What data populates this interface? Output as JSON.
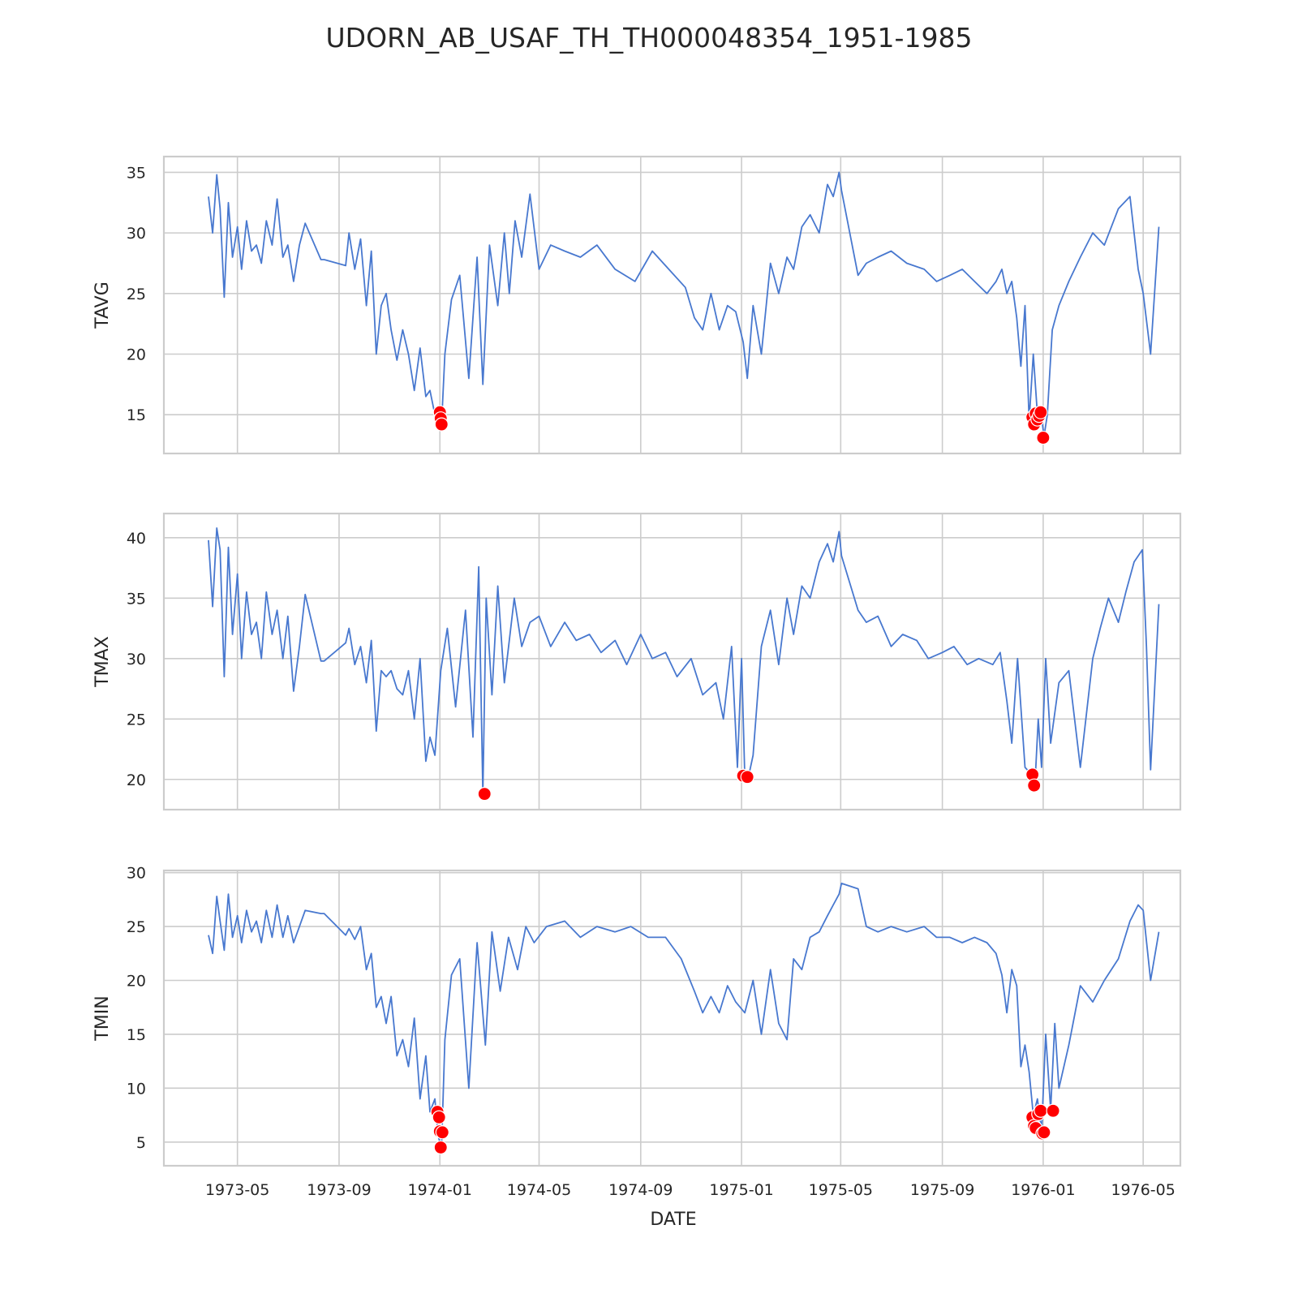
{
  "chart_data": {
    "type": "line",
    "title": "UDORN_AB_USAF_TH_TH000048354_1951-1985",
    "xlabel": "DATE",
    "x_tick_labels": [
      "1973-05",
      "1973-09",
      "1974-01",
      "1974-05",
      "1974-09",
      "1975-01",
      "1975-05",
      "1975-09",
      "1976-01",
      "1976-05"
    ],
    "xlim": [
      "1973-02-01",
      "1976-06-15"
    ],
    "grid": true,
    "panels": [
      {
        "ylabel": "TAVG",
        "ylim": [
          11.8,
          36.3
        ],
        "yticks": [
          15,
          20,
          25,
          30,
          35
        ],
        "series": {
          "x": [
            "1973-03-27",
            "1973-04-01",
            "1973-04-06",
            "1973-04-10",
            "1973-04-15",
            "1973-04-20",
            "1973-04-25",
            "1973-05-01",
            "1973-05-06",
            "1973-05-12",
            "1973-05-18",
            "1973-05-24",
            "1973-05-30",
            "1973-06-05",
            "1973-06-12",
            "1973-06-18",
            "1973-06-25",
            "1973-07-01",
            "1973-07-08",
            "1973-07-15",
            "1973-07-22",
            "1973-08-10",
            "1973-08-14",
            "1973-09-09",
            "1973-09-13",
            "1973-09-20",
            "1973-09-27",
            "1973-10-04",
            "1973-10-10",
            "1973-10-16",
            "1973-10-22",
            "1973-10-28",
            "1973-11-03",
            "1973-11-10",
            "1973-11-17",
            "1973-11-24",
            "1973-12-01",
            "1973-12-08",
            "1973-12-15",
            "1973-12-20",
            "1973-12-26",
            "1973-12-30",
            "1974-01-03",
            "1974-01-07",
            "1974-01-15",
            "1974-01-25",
            "1974-02-05",
            "1974-02-15",
            "1974-02-22",
            "1974-03-02",
            "1974-03-12",
            "1974-03-20",
            "1974-03-26",
            "1974-04-02",
            "1974-04-10",
            "1974-04-20",
            "1974-05-01",
            "1974-05-15",
            "1974-06-01",
            "1974-06-20",
            "1974-07-10",
            "1974-08-01",
            "1974-08-25",
            "1974-09-15",
            "1974-10-05",
            "1974-10-25",
            "1974-11-05",
            "1974-11-15",
            "1974-11-25",
            "1974-12-05",
            "1974-12-15",
            "1974-12-25",
            "1975-01-03",
            "1975-01-08",
            "1975-01-15",
            "1975-01-25",
            "1975-02-05",
            "1975-02-15",
            "1975-02-25",
            "1975-03-05",
            "1975-03-15",
            "1975-03-25",
            "1975-04-05",
            "1975-04-15",
            "1975-04-22",
            "1975-04-29",
            "1975-05-02",
            "1975-05-22",
            "1975-06-01",
            "1975-06-15",
            "1975-07-01",
            "1975-07-20",
            "1975-08-10",
            "1975-08-25",
            "1975-09-10",
            "1975-09-25",
            "1975-10-10",
            "1975-10-25",
            "1975-11-05",
            "1975-11-12",
            "1975-11-18",
            "1975-11-24",
            "1975-11-30",
            "1975-12-05",
            "1975-12-10",
            "1975-12-15",
            "1975-12-20",
            "1975-12-25",
            "1975-12-30",
            "1976-01-02",
            "1976-01-06",
            "1976-01-12",
            "1976-01-20",
            "1976-02-01",
            "1976-02-15",
            "1976-03-01",
            "1976-03-15",
            "1976-04-01",
            "1976-04-15",
            "1976-04-25",
            "1976-05-01",
            "1976-05-10",
            "1976-05-20"
          ],
          "y": [
            33.0,
            30.0,
            34.8,
            32.0,
            24.7,
            32.5,
            28.0,
            30.5,
            27.0,
            31.0,
            28.5,
            29.0,
            27.5,
            31.0,
            29.0,
            32.8,
            28.0,
            29.0,
            26.0,
            29.0,
            30.8,
            27.8,
            27.8,
            27.3,
            30.0,
            27.0,
            29.5,
            24.0,
            28.5,
            20.0,
            24.0,
            25.0,
            22.0,
            19.5,
            22.0,
            20.0,
            17.0,
            20.5,
            16.5,
            17.0,
            15.0,
            14.5,
            14.2,
            20.0,
            24.5,
            26.5,
            18.0,
            28.0,
            17.5,
            29.0,
            24.0,
            30.0,
            25.0,
            31.0,
            28.0,
            33.2,
            27.0,
            29.0,
            28.5,
            28.0,
            29.0,
            27.0,
            26.0,
            28.5,
            27.0,
            25.5,
            23.0,
            22.0,
            25.0,
            22.0,
            24.0,
            23.5,
            21.0,
            18.0,
            24.0,
            20.0,
            27.5,
            25.0,
            28.0,
            27.0,
            30.5,
            31.5,
            30.0,
            34.0,
            33.0,
            35.0,
            33.5,
            26.5,
            27.5,
            28.0,
            28.5,
            27.5,
            27.0,
            26.0,
            26.5,
            27.0,
            26.0,
            25.0,
            26.0,
            27.0,
            25.0,
            26.0,
            23.0,
            19.0,
            24.0,
            14.5,
            20.0,
            15.0,
            14.8,
            13.2,
            15.0,
            22.0,
            24.0,
            26.0,
            28.0,
            30.0,
            29.0,
            32.0,
            33.0,
            27.0,
            25.0,
            20.0,
            30.5
          ]
        },
        "anomalies": {
          "x": [
            "1974-01-01",
            "1974-01-02",
            "1974-01-03",
            "1975-12-19",
            "1975-12-21",
            "1975-12-23",
            "1975-12-25",
            "1975-12-27",
            "1975-12-29",
            "1976-01-01"
          ],
          "y": [
            15.2,
            14.7,
            14.2,
            14.8,
            14.2,
            15.1,
            14.6,
            14.9,
            15.2,
            13.1
          ]
        }
      },
      {
        "ylabel": "TMAX",
        "ylim": [
          17.5,
          42.0
        ],
        "yticks": [
          20,
          25,
          30,
          35,
          40
        ],
        "series": {
          "x": [
            "1973-03-27",
            "1973-04-01",
            "1973-04-06",
            "1973-04-10",
            "1973-04-15",
            "1973-04-20",
            "1973-04-25",
            "1973-05-01",
            "1973-05-06",
            "1973-05-12",
            "1973-05-18",
            "1973-05-24",
            "1973-05-30",
            "1973-06-05",
            "1973-06-12",
            "1973-06-18",
            "1973-06-25",
            "1973-07-01",
            "1973-07-08",
            "1973-07-15",
            "1973-07-22",
            "1973-08-10",
            "1973-08-14",
            "1973-09-09",
            "1973-09-13",
            "1973-09-20",
            "1973-09-27",
            "1973-10-04",
            "1973-10-10",
            "1973-10-16",
            "1973-10-22",
            "1973-10-28",
            "1973-11-03",
            "1973-11-10",
            "1973-11-17",
            "1973-11-24",
            "1973-12-01",
            "1973-12-08",
            "1973-12-15",
            "1973-12-20",
            "1973-12-26",
            "1974-01-02",
            "1974-01-10",
            "1974-01-20",
            "1974-02-01",
            "1974-02-10",
            "1974-02-17",
            "1974-02-22",
            "1974-02-26",
            "1974-03-05",
            "1974-03-12",
            "1974-03-20",
            "1974-04-01",
            "1974-04-10",
            "1974-04-20",
            "1974-05-01",
            "1974-05-15",
            "1974-06-01",
            "1974-06-15",
            "1974-07-01",
            "1974-07-15",
            "1974-08-01",
            "1974-08-15",
            "1974-09-01",
            "1974-09-15",
            "1974-10-01",
            "1974-10-15",
            "1974-11-01",
            "1974-11-15",
            "1974-12-01",
            "1974-12-10",
            "1974-12-20",
            "1974-12-27",
            "1975-01-01",
            "1975-01-05",
            "1975-01-10",
            "1975-01-15",
            "1975-01-25",
            "1975-02-05",
            "1975-02-15",
            "1975-02-25",
            "1975-03-05",
            "1975-03-15",
            "1975-03-25",
            "1975-04-05",
            "1975-04-15",
            "1975-04-22",
            "1975-04-29",
            "1975-05-02",
            "1975-05-22",
            "1975-06-01",
            "1975-06-15",
            "1975-07-01",
            "1975-07-15",
            "1975-08-01",
            "1975-08-15",
            "1975-09-01",
            "1975-09-15",
            "1975-10-01",
            "1975-10-15",
            "1975-11-01",
            "1975-11-10",
            "1975-11-18",
            "1975-11-24",
            "1975-12-01",
            "1975-12-10",
            "1975-12-18",
            "1975-12-22",
            "1975-12-26",
            "1975-12-30",
            "1976-01-04",
            "1976-01-10",
            "1976-01-20",
            "1976-02-01",
            "1976-02-15",
            "1976-03-01",
            "1976-03-10",
            "1976-03-20",
            "1976-04-01",
            "1976-04-10",
            "1976-04-20",
            "1976-04-30",
            "1976-05-05",
            "1976-05-10",
            "1976-05-20"
          ],
          "y": [
            39.8,
            34.3,
            40.8,
            39.0,
            28.5,
            39.2,
            32.0,
            37.0,
            30.0,
            35.5,
            32.0,
            33.0,
            30.0,
            35.5,
            32.0,
            34.0,
            30.0,
            33.5,
            27.3,
            31.0,
            35.3,
            29.8,
            29.8,
            31.3,
            32.5,
            29.5,
            31.0,
            28.0,
            31.5,
            24.0,
            29.0,
            28.5,
            29.0,
            27.5,
            27.0,
            29.0,
            25.0,
            30.0,
            21.5,
            23.5,
            22.0,
            29.0,
            32.5,
            26.0,
            34.0,
            23.5,
            37.6,
            18.8,
            35.0,
            27.0,
            36.0,
            28.0,
            35.0,
            31.0,
            33.0,
            33.5,
            31.0,
            33.0,
            31.5,
            32.0,
            30.5,
            31.5,
            29.5,
            32.0,
            30.0,
            30.5,
            28.5,
            30.0,
            27.0,
            28.0,
            25.0,
            31.0,
            21.0,
            30.0,
            20.2,
            20.4,
            22.0,
            31.0,
            34.0,
            29.5,
            35.0,
            32.0,
            36.0,
            35.0,
            38.0,
            39.5,
            38.0,
            40.5,
            38.5,
            34.0,
            33.0,
            33.5,
            31.0,
            32.0,
            31.5,
            30.0,
            30.5,
            31.0,
            29.5,
            30.0,
            29.5,
            30.5,
            26.5,
            23.0,
            30.0,
            21.0,
            20.4,
            19.5,
            25.0,
            21.0,
            30.0,
            23.0,
            28.0,
            29.0,
            21.0,
            30.0,
            32.5,
            35.0,
            33.0,
            35.5,
            38.0,
            39.0,
            31.0,
            20.8,
            34.5
          ]
        },
        "anomalies": {
          "x": [
            "1974-02-24",
            "1975-01-03",
            "1975-01-08",
            "1975-12-19",
            "1975-12-21"
          ],
          "y": [
            18.8,
            20.3,
            20.2,
            20.4,
            19.5
          ]
        }
      },
      {
        "ylabel": "TMIN",
        "ylim": [
          2.8,
          30.2
        ],
        "yticks": [
          5,
          10,
          15,
          20,
          25,
          30
        ],
        "series": {
          "x": [
            "1973-03-27",
            "1973-04-01",
            "1973-04-06",
            "1973-04-10",
            "1973-04-15",
            "1973-04-20",
            "1973-04-25",
            "1973-05-01",
            "1973-05-06",
            "1973-05-12",
            "1973-05-18",
            "1973-05-24",
            "1973-05-30",
            "1973-06-05",
            "1973-06-12",
            "1973-06-18",
            "1973-06-25",
            "1973-07-01",
            "1973-07-08",
            "1973-07-15",
            "1973-07-22",
            "1973-08-10",
            "1973-08-14",
            "1973-09-09",
            "1973-09-13",
            "1973-09-20",
            "1973-09-27",
            "1973-10-04",
            "1973-10-10",
            "1973-10-16",
            "1973-10-22",
            "1973-10-28",
            "1973-11-03",
            "1973-11-10",
            "1973-11-17",
            "1973-11-24",
            "1973-12-01",
            "1973-12-08",
            "1973-12-15",
            "1973-12-20",
            "1973-12-26",
            "1973-12-30",
            "1974-01-03",
            "1974-01-07",
            "1974-01-15",
            "1974-01-25",
            "1974-02-05",
            "1974-02-15",
            "1974-02-25",
            "1974-03-05",
            "1974-03-15",
            "1974-03-25",
            "1974-04-05",
            "1974-04-15",
            "1974-04-25",
            "1974-05-10",
            "1974-06-01",
            "1974-06-20",
            "1974-07-10",
            "1974-08-01",
            "1974-08-20",
            "1974-09-10",
            "1974-10-01",
            "1974-10-20",
            "1974-11-05",
            "1974-11-15",
            "1974-11-25",
            "1974-12-05",
            "1974-12-15",
            "1974-12-25",
            "1975-01-05",
            "1975-01-15",
            "1975-01-25",
            "1975-02-05",
            "1975-02-15",
            "1975-02-25",
            "1975-03-05",
            "1975-03-15",
            "1975-03-25",
            "1975-04-05",
            "1975-04-15",
            "1975-04-22",
            "1975-04-29",
            "1975-05-02",
            "1975-05-22",
            "1975-06-01",
            "1975-06-15",
            "1975-07-01",
            "1975-07-20",
            "1975-08-10",
            "1975-08-25",
            "1975-09-10",
            "1975-09-25",
            "1975-10-10",
            "1975-10-25",
            "1975-11-05",
            "1975-11-12",
            "1975-11-18",
            "1975-11-24",
            "1975-11-30",
            "1975-12-05",
            "1975-12-10",
            "1975-12-15",
            "1975-12-20",
            "1975-12-25",
            "1975-12-30",
            "1976-01-04",
            "1976-01-10",
            "1976-01-15",
            "1976-01-20",
            "1976-02-01",
            "1976-02-15",
            "1976-03-01",
            "1976-03-15",
            "1976-04-01",
            "1976-04-15",
            "1976-04-25",
            "1976-05-01",
            "1976-05-10",
            "1976-05-20"
          ],
          "y": [
            24.2,
            22.5,
            27.8,
            25.5,
            22.8,
            28.0,
            24.0,
            26.0,
            23.5,
            26.5,
            24.5,
            25.5,
            23.5,
            26.5,
            24.0,
            27.0,
            24.0,
            26.0,
            23.5,
            25.0,
            26.5,
            26.2,
            26.2,
            24.2,
            24.8,
            23.8,
            25.0,
            21.0,
            22.5,
            17.5,
            18.5,
            16.0,
            18.5,
            13.0,
            14.5,
            12.0,
            16.5,
            9.0,
            13.0,
            7.8,
            9.0,
            5.5,
            4.5,
            14.5,
            20.5,
            22.0,
            10.0,
            23.5,
            14.0,
            24.5,
            19.0,
            24.0,
            21.0,
            25.0,
            23.5,
            25.0,
            25.5,
            24.0,
            25.0,
            24.5,
            25.0,
            24.0,
            24.0,
            22.0,
            19.0,
            17.0,
            18.5,
            17.0,
            19.5,
            18.0,
            17.0,
            20.0,
            15.0,
            21.0,
            16.0,
            14.5,
            22.0,
            21.0,
            24.0,
            24.5,
            26.0,
            27.0,
            28.0,
            29.0,
            28.5,
            25.0,
            24.5,
            25.0,
            24.5,
            25.0,
            24.0,
            24.0,
            23.5,
            24.0,
            23.5,
            22.5,
            20.5,
            17.0,
            21.0,
            19.5,
            12.0,
            14.0,
            11.5,
            7.5,
            9.0,
            6.0,
            15.0,
            8.0,
            16.0,
            10.0,
            14.0,
            19.5,
            18.0,
            20.0,
            22.0,
            25.5,
            27.0,
            26.5,
            20.0,
            24.5
          ]
        },
        "anomalies": {
          "x": [
            "1973-12-29",
            "1973-12-31",
            "1974-01-01",
            "1974-01-02",
            "1974-01-04",
            "1975-12-19",
            "1975-12-21",
            "1975-12-23",
            "1975-12-26",
            "1975-12-29",
            "1975-12-31",
            "1976-01-02",
            "1976-01-13"
          ],
          "y": [
            7.8,
            7.3,
            6.0,
            4.5,
            5.9,
            7.3,
            6.5,
            6.3,
            7.6,
            7.9,
            5.8,
            5.9,
            7.9
          ]
        }
      }
    ]
  }
}
